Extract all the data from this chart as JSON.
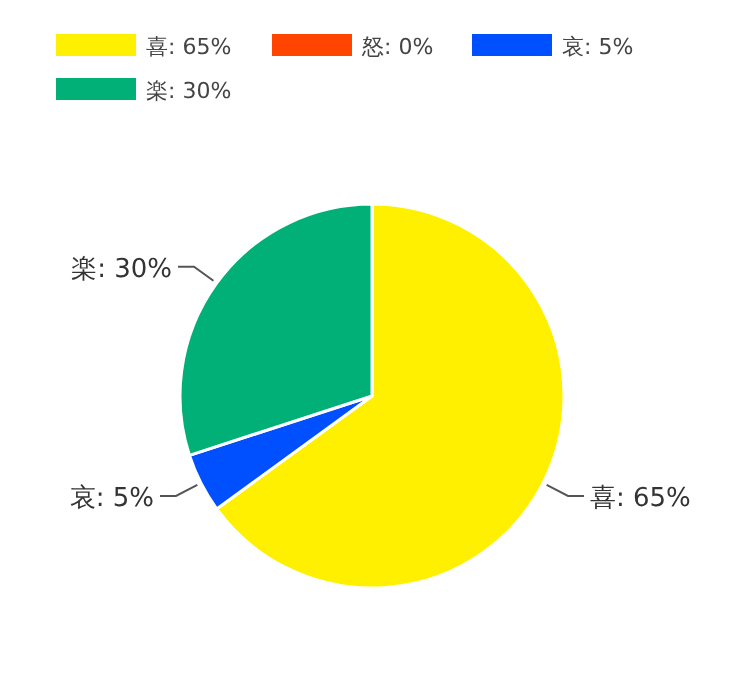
{
  "chart_data": {
    "type": "pie",
    "categories": [
      "喜: 65%",
      "怒: 0%",
      "哀: 5%",
      "楽: 30%"
    ],
    "values": [
      65,
      0,
      5,
      30
    ],
    "colors": [
      "#fff000",
      "#ff4500",
      "#0050ff",
      "#00b076"
    ],
    "value_labels": [
      "喜: 65%",
      null,
      "哀: 5%",
      "楽: 30%"
    ],
    "legend": "top left"
  }
}
